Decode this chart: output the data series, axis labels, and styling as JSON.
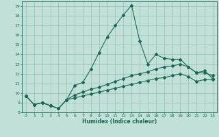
{
  "background_color": "#c0e0d8",
  "grid_color": "#98c0b8",
  "line_color": "#1a6858",
  "xlabel": "Humidex (Indice chaleur)",
  "ylim": [
    8,
    19.5
  ],
  "xlim": [
    -0.5,
    23.5
  ],
  "yticks": [
    8,
    9,
    10,
    11,
    12,
    13,
    14,
    15,
    16,
    17,
    18,
    19
  ],
  "xticks": [
    0,
    1,
    2,
    3,
    4,
    5,
    6,
    7,
    8,
    9,
    10,
    11,
    12,
    13,
    14,
    15,
    16,
    17,
    18,
    19,
    20,
    21,
    22,
    23
  ],
  "line1_x": [
    0,
    1,
    2,
    3,
    4,
    5,
    6,
    7,
    8,
    9,
    10,
    11,
    12,
    13,
    14,
    15,
    16,
    17,
    18,
    19,
    20,
    21,
    22,
    23
  ],
  "line1_y": [
    9.7,
    8.8,
    9.0,
    8.7,
    8.4,
    9.3,
    10.8,
    11.1,
    12.5,
    14.2,
    15.8,
    17.0,
    18.1,
    19.1,
    15.4,
    13.0,
    14.0,
    13.6,
    13.5,
    13.5,
    12.7,
    12.1,
    12.3,
    11.5
  ],
  "line2_x": [
    0,
    1,
    2,
    3,
    4,
    5,
    6,
    7,
    8,
    9,
    10,
    11,
    12,
    13,
    14,
    15,
    16,
    17,
    18,
    19,
    20,
    21,
    22,
    23
  ],
  "line2_y": [
    9.7,
    8.8,
    9.0,
    8.7,
    8.4,
    9.3,
    9.8,
    10.1,
    10.4,
    10.6,
    10.9,
    11.2,
    11.5,
    11.8,
    12.0,
    12.2,
    12.5,
    12.7,
    12.8,
    13.0,
    12.7,
    12.1,
    12.1,
    11.8
  ],
  "line3_x": [
    0,
    1,
    2,
    3,
    4,
    5,
    6,
    7,
    8,
    9,
    10,
    11,
    12,
    13,
    14,
    15,
    16,
    17,
    18,
    19,
    20,
    21,
    22,
    23
  ],
  "line3_y": [
    9.7,
    8.8,
    9.0,
    8.7,
    8.4,
    9.3,
    9.5,
    9.7,
    9.9,
    10.1,
    10.3,
    10.5,
    10.7,
    10.9,
    11.1,
    11.3,
    11.5,
    11.6,
    11.8,
    12.0,
    11.7,
    11.2,
    11.4,
    11.4
  ]
}
